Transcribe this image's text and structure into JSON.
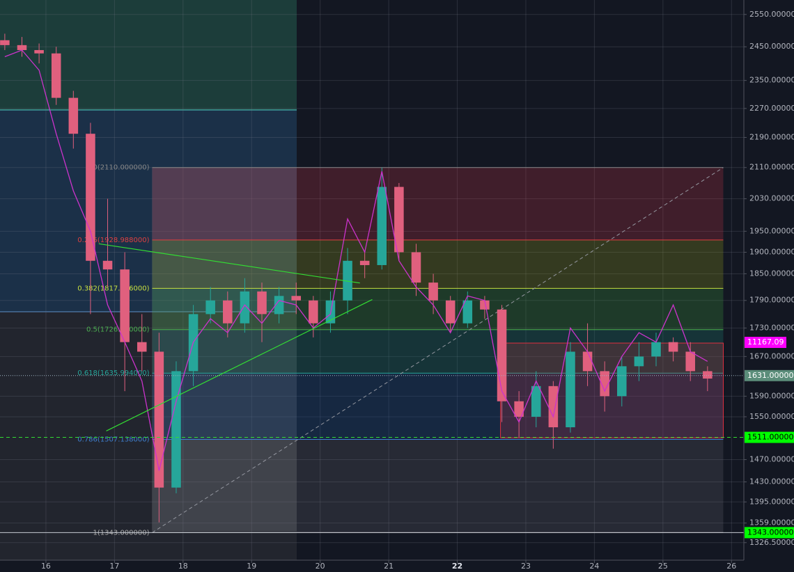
{
  "chart_data": {
    "type": "candlestick",
    "log_scale": true,
    "grid": true,
    "up_color": "#26a69a",
    "down_color": "#e0607e",
    "xlim": [
      15.33,
      26.18
    ],
    "xticks": [
      16,
      17,
      18,
      19,
      20,
      21,
      22,
      23,
      24,
      25,
      26
    ],
    "ylim": [
      1298,
      2596
    ],
    "yticks": [
      {
        "value": 2550,
        "label": "2550.000000"
      },
      {
        "value": 2450,
        "label": "2450.000000"
      },
      {
        "value": 2350,
        "label": "2350.000000"
      },
      {
        "value": 2270,
        "label": "2270.000000"
      },
      {
        "value": 2190,
        "label": "2190.000000"
      },
      {
        "value": 2110,
        "label": "2110.000000"
      },
      {
        "value": 2030,
        "label": "2030.000000"
      },
      {
        "value": 1950,
        "label": "1950.000000"
      },
      {
        "value": 1900,
        "label": "1900.000000"
      },
      {
        "value": 1850,
        "label": "1850.000000"
      },
      {
        "value": 1790,
        "label": "1790.000000"
      },
      {
        "value": 1730,
        "label": "1730.000000"
      },
      {
        "value": 1670,
        "label": "1670.000000"
      },
      {
        "value": 1590,
        "label": "1590.000000"
      },
      {
        "value": 1550,
        "label": "1550.000000"
      },
      {
        "value": 1470,
        "label": "1470.000000"
      },
      {
        "value": 1430,
        "label": "1430.000000"
      },
      {
        "value": 1395,
        "label": "1395.000000"
      },
      {
        "value": 1359,
        "label": "1359.000000"
      },
      {
        "value": 1326.5,
        "label": "1326.50000"
      }
    ],
    "x": [
      15.4,
      15.65,
      15.9,
      16.15,
      16.4,
      16.65,
      16.9,
      17.15,
      17.4,
      17.65,
      17.9,
      18.15,
      18.4,
      18.65,
      18.9,
      19.15,
      19.4,
      19.65,
      19.9,
      20.15,
      20.4,
      20.65,
      20.9,
      21.15,
      21.4,
      21.65,
      21.9,
      22.15,
      22.4,
      22.65,
      22.9,
      23.15,
      23.4,
      23.65,
      23.9,
      24.15,
      24.4,
      24.65,
      24.9,
      25.15,
      25.4,
      25.65
    ],
    "open": [
      2470,
      2455,
      2440,
      2430,
      2300,
      2200,
      1880,
      1860,
      1700,
      1680,
      1420,
      1640,
      1760,
      1790,
      1740,
      1810,
      1760,
      1800,
      1790,
      1740,
      1790,
      1880,
      1870,
      2060,
      1900,
      1830,
      1790,
      1740,
      1790,
      1770,
      1580,
      1550,
      1610,
      1530,
      1680,
      1640,
      1590,
      1650,
      1670,
      1700,
      1680,
      1640
    ],
    "high": [
      2490,
      2480,
      2460,
      2450,
      2320,
      2230,
      2030,
      1900,
      1760,
      1720,
      1660,
      1780,
      1820,
      1810,
      1840,
      1830,
      1820,
      1830,
      1800,
      1810,
      1910,
      1900,
      2110,
      2070,
      1920,
      1850,
      1800,
      1810,
      1800,
      1780,
      1600,
      1640,
      1620,
      1700,
      1740,
      1660,
      1670,
      1700,
      1720,
      1710,
      1700,
      1650
    ],
    "low": [
      2440,
      2420,
      2400,
      2280,
      2160,
      1760,
      1820,
      1600,
      1640,
      1360,
      1410,
      1610,
      1740,
      1710,
      1720,
      1700,
      1740,
      1760,
      1710,
      1720,
      1760,
      1840,
      1860,
      1880,
      1800,
      1760,
      1720,
      1730,
      1750,
      1540,
      1510,
      1530,
      1490,
      1520,
      1610,
      1560,
      1570,
      1620,
      1650,
      1660,
      1620,
      1600
    ],
    "close": [
      2455,
      2440,
      2430,
      2300,
      2200,
      1880,
      1860,
      1700,
      1680,
      1420,
      1640,
      1760,
      1790,
      1740,
      1810,
      1760,
      1800,
      1790,
      1740,
      1790,
      1880,
      1870,
      2060,
      1900,
      1830,
      1790,
      1740,
      1790,
      1770,
      1580,
      1550,
      1610,
      1530,
      1680,
      1640,
      1590,
      1650,
      1670,
      1700,
      1680,
      1640,
      1625
    ],
    "overlay": {
      "color": "#cc33cc",
      "values": [
        2420,
        2440,
        2380,
        2200,
        2050,
        1950,
        1780,
        1700,
        1620,
        1450,
        1580,
        1700,
        1750,
        1720,
        1780,
        1740,
        1790,
        1780,
        1730,
        1760,
        1980,
        1900,
        2100,
        1880,
        1820,
        1780,
        1720,
        1800,
        1790,
        1600,
        1540,
        1620,
        1550,
        1730,
        1680,
        1600,
        1670,
        1720,
        1700,
        1780,
        1680,
        1660
      ]
    },
    "fib_x": [
      17.55,
      25.88
    ],
    "fib_levels": [
      {
        "value": 2110,
        "label": "0(2110.000000)",
        "color": "#888888",
        "fill": "rgba(200,50,70,0.25)"
      },
      {
        "value": 1928.988,
        "label": "0.236(1928.988000)",
        "color": "#e04040",
        "fill": "rgba(140,150,30,0.28)"
      },
      {
        "value": 1817.006,
        "label": "0.382(1817.006000)",
        "color": "#c8e040",
        "fill": "rgba(60,150,60,0.28)"
      },
      {
        "value": 1726.5,
        "label": "0.5(1726.500000)",
        "color": "#4caf50",
        "fill": "rgba(30,120,110,0.3)"
      },
      {
        "value": 1635.994,
        "label": "0.618(1635.994000)",
        "color": "#26a69a",
        "fill": "rgba(30,80,140,0.3)"
      },
      {
        "value": 1507.138,
        "label": "0.786(1507.138000)",
        "color": "#3f7fd0",
        "fill": "rgba(120,120,130,0.2)"
      },
      {
        "value": 1343,
        "label": "1(1343.000000)",
        "color": "#aaaaaa"
      }
    ],
    "trendlines": [
      {
        "color": "#33dd33",
        "x": [
          16.77,
          20.58
        ],
        "y": [
          1920,
          1829
        ]
      },
      {
        "color": "#33dd33",
        "x": [
          16.88,
          20.76
        ],
        "y": [
          1523,
          1792
        ]
      }
    ],
    "range_box": {
      "color": "#e03040",
      "x": [
        22.63,
        25.88
      ],
      "y": [
        1510,
        1698
      ]
    },
    "price_lines": [
      {
        "value": 1631,
        "label": "1631.000000",
        "color": "#9fb6c4",
        "tag_bg": "#5b8d7a",
        "tag_text": "#ffffff",
        "dash": "1,2"
      },
      {
        "value": 1511,
        "label": "1511.000000",
        "color": "#33dd33",
        "tag_bg": "#00ff00",
        "tag_text": "#000000",
        "dash": "5,4"
      },
      {
        "value": 1343,
        "label": "1343.000000",
        "color": "#c8ccd4",
        "tag_bg": "#00ff00",
        "tag_text": "#000000",
        "dash": ""
      }
    ],
    "indicator_last": 11167.09
  }
}
